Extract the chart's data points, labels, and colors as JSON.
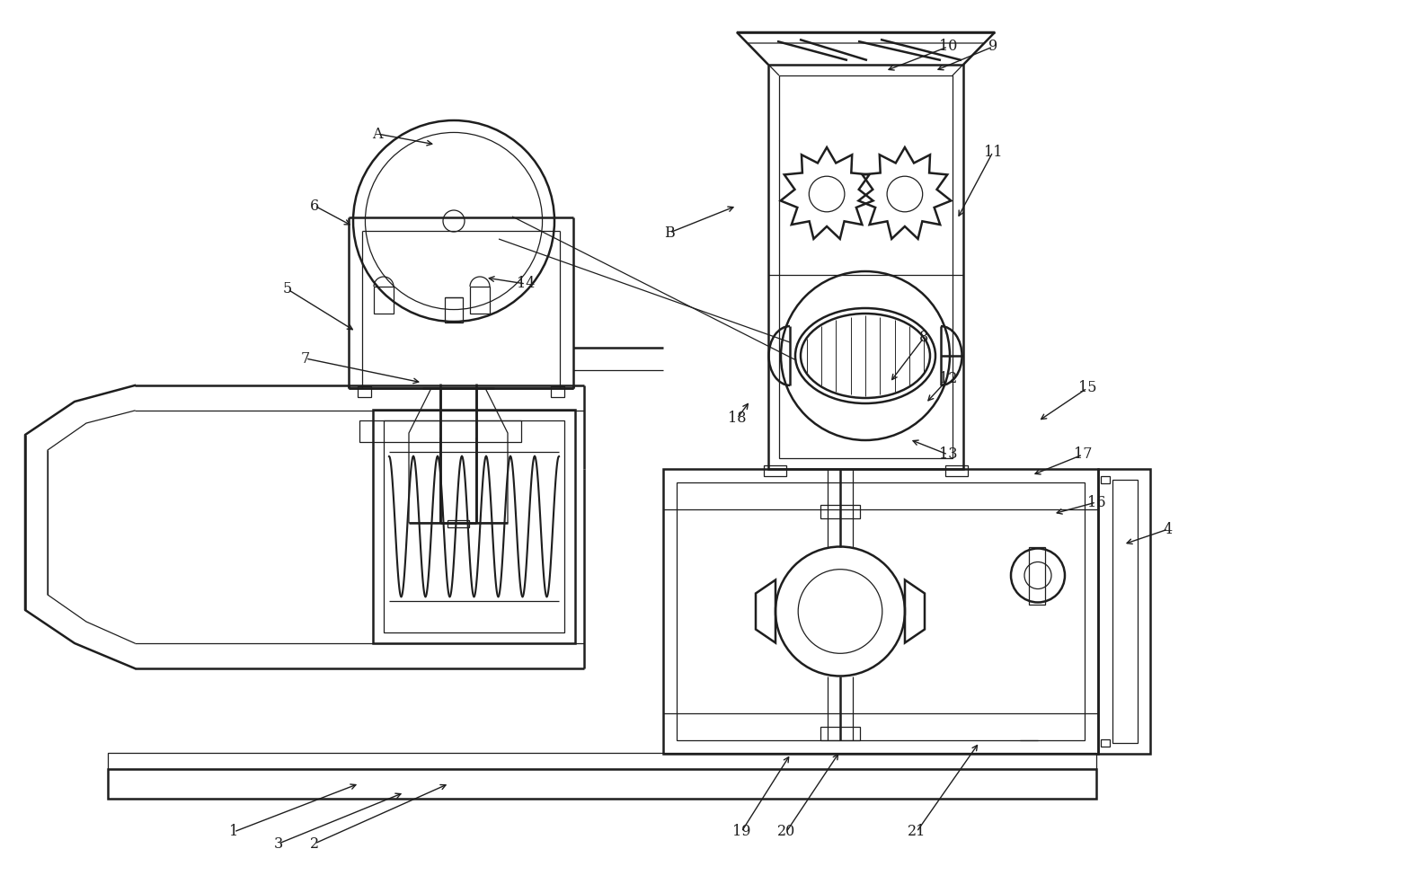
{
  "bg_color": "#ffffff",
  "lc": "#1e1e1e",
  "lw": 1.8,
  "tw": 0.9,
  "fig_w": 15.68,
  "fig_h": 9.94,
  "xmax": 15.68,
  "ymax": 9.94
}
